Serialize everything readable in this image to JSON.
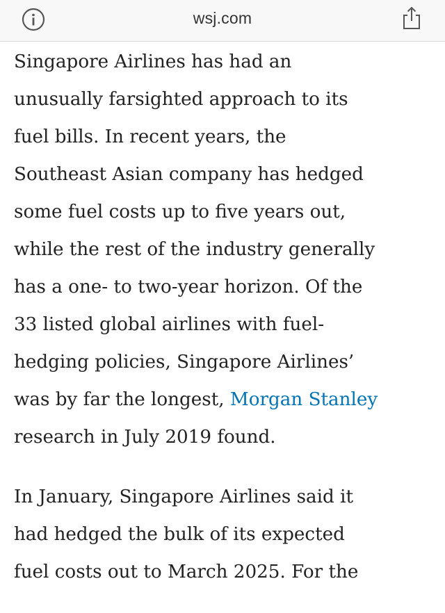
{
  "browser": {
    "url": "wsj.com",
    "info_icon": "info-circle-icon",
    "share_icon": "share-icon"
  },
  "article": {
    "paragraph_1": {
      "line_1": "Singapore Airlines has had an",
      "line_2": "unusually farsighted approach to its",
      "line_3": "fuel bills. In recent years, the",
      "line_4": "Southeast Asian company has hedged",
      "line_5": "some fuel costs up to five years out,",
      "line_6": "while the rest of the industry generally",
      "line_7": "has a one- to two-year horizon. Of the",
      "line_8": "33 listed global airlines with fuel-",
      "line_9": "hedging policies, Singapore Airlines’",
      "line_10_before": "was by far the longest, ",
      "line_10_link": "Morgan Stanley",
      "line_11": "research in July 2019 found."
    },
    "paragraph_2": {
      "line_1": "In January, Singapore Airlines said it",
      "line_2": "had hedged the bulk of its expected",
      "line_3": "fuel costs out to March 2025. For the"
    }
  },
  "colors": {
    "link": "#0274b6",
    "text": "#222222",
    "toolbar": "#f8f8f8"
  }
}
